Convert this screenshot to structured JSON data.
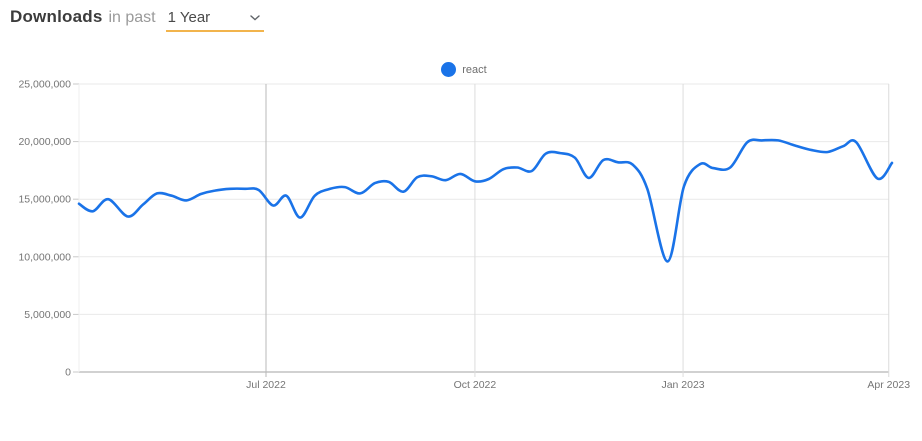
{
  "header": {
    "title": "Downloads",
    "subtitle": "in past",
    "range_select": {
      "value": "1 Year"
    }
  },
  "legend": {
    "items": [
      {
        "label": "react",
        "color": "#1a73e8"
      }
    ]
  },
  "colors": {
    "line": "#1a73e8",
    "accent_underline": "#f2b44c",
    "grid": "#e9e9e9",
    "month_grid": "#dcdcdc",
    "july_grid": "#b9b9b9",
    "edge_grid": "#efefef",
    "axis": "#a3a3a3",
    "tick_dash": "#c9c9c9",
    "tick_text": "#757575"
  },
  "chart_data": {
    "type": "line",
    "title": "Downloads in past 1 Year",
    "xlabel": "",
    "ylabel": "",
    "ylim": [
      0,
      25000000
    ],
    "grid": true,
    "legend_position": "top-center",
    "y_ticks": [
      {
        "value": 0,
        "label": "0"
      },
      {
        "value": 5000000,
        "label": "5,000,000"
      },
      {
        "value": 10000000,
        "label": "10,000,000"
      },
      {
        "value": 15000000,
        "label": "15,000,000"
      },
      {
        "value": 20000000,
        "label": "20,000,000"
      },
      {
        "value": 25000000,
        "label": "25,000,000"
      }
    ],
    "x_ticks": [
      {
        "pos": 0.23,
        "label": "Jul 2022"
      },
      {
        "pos": 0.487,
        "label": "Oct 2022"
      },
      {
        "pos": 0.743,
        "label": "Jan 2023"
      },
      {
        "pos": 0.996,
        "label": "Apr 2023"
      }
    ],
    "series": [
      {
        "name": "react",
        "color": "#1a73e8",
        "points": [
          [
            0.0,
            14600000
          ],
          [
            0.017,
            13950000
          ],
          [
            0.036,
            15000000
          ],
          [
            0.06,
            13500000
          ],
          [
            0.079,
            14550000
          ],
          [
            0.096,
            15500000
          ],
          [
            0.114,
            15300000
          ],
          [
            0.132,
            14900000
          ],
          [
            0.15,
            15450000
          ],
          [
            0.167,
            15750000
          ],
          [
            0.186,
            15900000
          ],
          [
            0.204,
            15900000
          ],
          [
            0.221,
            15800000
          ],
          [
            0.239,
            14450000
          ],
          [
            0.255,
            15300000
          ],
          [
            0.272,
            13400000
          ],
          [
            0.29,
            15300000
          ],
          [
            0.309,
            15900000
          ],
          [
            0.327,
            16050000
          ],
          [
            0.346,
            15500000
          ],
          [
            0.364,
            16400000
          ],
          [
            0.381,
            16500000
          ],
          [
            0.399,
            15650000
          ],
          [
            0.416,
            16900000
          ],
          [
            0.433,
            17000000
          ],
          [
            0.451,
            16650000
          ],
          [
            0.469,
            17200000
          ],
          [
            0.487,
            16550000
          ],
          [
            0.504,
            16750000
          ],
          [
            0.522,
            17600000
          ],
          [
            0.539,
            17750000
          ],
          [
            0.557,
            17450000
          ],
          [
            0.574,
            18950000
          ],
          [
            0.592,
            19000000
          ],
          [
            0.61,
            18600000
          ],
          [
            0.627,
            16850000
          ],
          [
            0.645,
            18400000
          ],
          [
            0.663,
            18200000
          ],
          [
            0.681,
            18000000
          ],
          [
            0.699,
            15900000
          ],
          [
            0.724,
            9600000
          ],
          [
            0.744,
            16100000
          ],
          [
            0.764,
            18050000
          ],
          [
            0.78,
            17700000
          ],
          [
            0.801,
            17750000
          ],
          [
            0.822,
            19950000
          ],
          [
            0.84,
            20100000
          ],
          [
            0.86,
            20100000
          ],
          [
            0.881,
            19650000
          ],
          [
            0.902,
            19250000
          ],
          [
            0.921,
            19100000
          ],
          [
            0.94,
            19600000
          ],
          [
            0.956,
            19950000
          ],
          [
            0.982,
            16800000
          ],
          [
            1.0,
            18150000
          ]
        ]
      }
    ]
  }
}
